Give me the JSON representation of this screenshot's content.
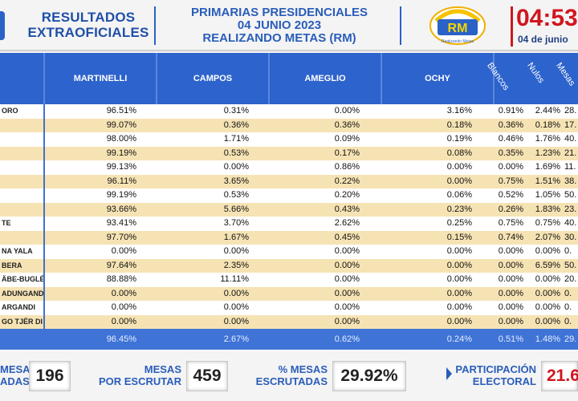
{
  "header": {
    "left_title": [
      "RESULTADOS",
      "EXTRAOFICIALES"
    ],
    "center_title": [
      "PRIMARIAS PRESIDENCIALES",
      "04 JUNIO 2023",
      "REALIZANDO METAS (RM)"
    ],
    "logo_text": "RM",
    "logo_subtext": "Realizando Metas",
    "clock_time": "04:53",
    "clock_date": "04 de junio"
  },
  "columns": {
    "martinelli": "MARTINELLI",
    "campos": "CAMPOS",
    "ameglio": "AMEGLIO",
    "ochy": "OCHY",
    "blancos": "Blancos",
    "nulos": "Nulos",
    "mesas": "Mesas"
  },
  "rows": [
    {
      "name": "ORO",
      "martinelli": "96.51%",
      "campos": "0.31%",
      "ameglio": "0.00%",
      "ochy": "3.16%",
      "blancos": "0.91%",
      "nulos": "2.44%",
      "mesas": "28."
    },
    {
      "name": "",
      "martinelli": "99.07%",
      "campos": "0.36%",
      "ameglio": "0.36%",
      "ochy": "0.18%",
      "blancos": "0.36%",
      "nulos": "0.18%",
      "mesas": "17."
    },
    {
      "name": "",
      "martinelli": "98.00%",
      "campos": "1.71%",
      "ameglio": "0.09%",
      "ochy": "0.19%",
      "blancos": "0.46%",
      "nulos": "1.76%",
      "mesas": "40."
    },
    {
      "name": "",
      "martinelli": "99.19%",
      "campos": "0.53%",
      "ameglio": "0.17%",
      "ochy": "0.08%",
      "blancos": "0.35%",
      "nulos": "1.23%",
      "mesas": "21."
    },
    {
      "name": "",
      "martinelli": "99.13%",
      "campos": "0.00%",
      "ameglio": "0.86%",
      "ochy": "0.00%",
      "blancos": "0.00%",
      "nulos": "1.69%",
      "mesas": "11."
    },
    {
      "name": "",
      "martinelli": "96.11%",
      "campos": "3.65%",
      "ameglio": "0.22%",
      "ochy": "0.00%",
      "blancos": "0.75%",
      "nulos": "1.51%",
      "mesas": "38."
    },
    {
      "name": "",
      "martinelli": "99.19%",
      "campos": "0.53%",
      "ameglio": "0.20%",
      "ochy": "0.06%",
      "blancos": "0.52%",
      "nulos": "1.05%",
      "mesas": "50."
    },
    {
      "name": "",
      "martinelli": "93.66%",
      "campos": "5.66%",
      "ameglio": "0.43%",
      "ochy": "0.23%",
      "blancos": "0.26%",
      "nulos": "1.83%",
      "mesas": "23."
    },
    {
      "name": "TE",
      "martinelli": "93.41%",
      "campos": "3.70%",
      "ameglio": "2.62%",
      "ochy": "0.25%",
      "blancos": "0.75%",
      "nulos": "0.75%",
      "mesas": "40."
    },
    {
      "name": "",
      "martinelli": "97.70%",
      "campos": "1.67%",
      "ameglio": "0.45%",
      "ochy": "0.15%",
      "blancos": "0.74%",
      "nulos": "2.07%",
      "mesas": "30."
    },
    {
      "name": "NA YALA",
      "martinelli": "0.00%",
      "campos": "0.00%",
      "ameglio": "0.00%",
      "ochy": "0.00%",
      "blancos": "0.00%",
      "nulos": "0.00%",
      "mesas": "0."
    },
    {
      "name": "BERA",
      "martinelli": "97.64%",
      "campos": "2.35%",
      "ameglio": "0.00%",
      "ochy": "0.00%",
      "blancos": "0.00%",
      "nulos": "6.59%",
      "mesas": "50."
    },
    {
      "name": "ÄBE-BUGLÉ",
      "martinelli": "88.88%",
      "campos": "11.11%",
      "ameglio": "0.00%",
      "ochy": "0.00%",
      "blancos": "0.00%",
      "nulos": "0.00%",
      "mesas": "20."
    },
    {
      "name": "ADUNGANDI",
      "martinelli": "0.00%",
      "campos": "0.00%",
      "ameglio": "0.00%",
      "ochy": "0.00%",
      "blancos": "0.00%",
      "nulos": "0.00%",
      "mesas": "0."
    },
    {
      "name": "ARGANDI",
      "martinelli": "0.00%",
      "campos": "0.00%",
      "ameglio": "0.00%",
      "ochy": "0.00%",
      "blancos": "0.00%",
      "nulos": "0.00%",
      "mesas": "0."
    },
    {
      "name": "GO TJËR DI",
      "martinelli": "0.00%",
      "campos": "0.00%",
      "ameglio": "0.00%",
      "ochy": "0.00%",
      "blancos": "0.00%",
      "nulos": "0.00%",
      "mesas": "0."
    }
  ],
  "totals": {
    "martinelli": "96.45%",
    "campos": "2.67%",
    "ameglio": "0.62%",
    "ochy": "0.24%",
    "blancos": "0.51%",
    "nulos": "1.48%",
    "mesas": "29."
  },
  "footer": {
    "mesas_escrutadas_label": [
      "MESAS",
      "ADAS"
    ],
    "mesas_escrutadas_value": "196",
    "mesas_por_escrutar_label": [
      "MESAS",
      "POR ESCRUTAR"
    ],
    "mesas_por_escrutar_value": "459",
    "pct_mesas_label": [
      "% MESAS",
      "ESCRUTADAS"
    ],
    "pct_mesas_value": "29.92%",
    "participacion_label": [
      "PARTICIPACIÓN",
      "ELECTORAL"
    ],
    "participacion_value": "21.6"
  },
  "colors": {
    "header_blue": "#2d63cc",
    "row_alt": "#f6e3b4",
    "accent_red": "#d0161f"
  }
}
